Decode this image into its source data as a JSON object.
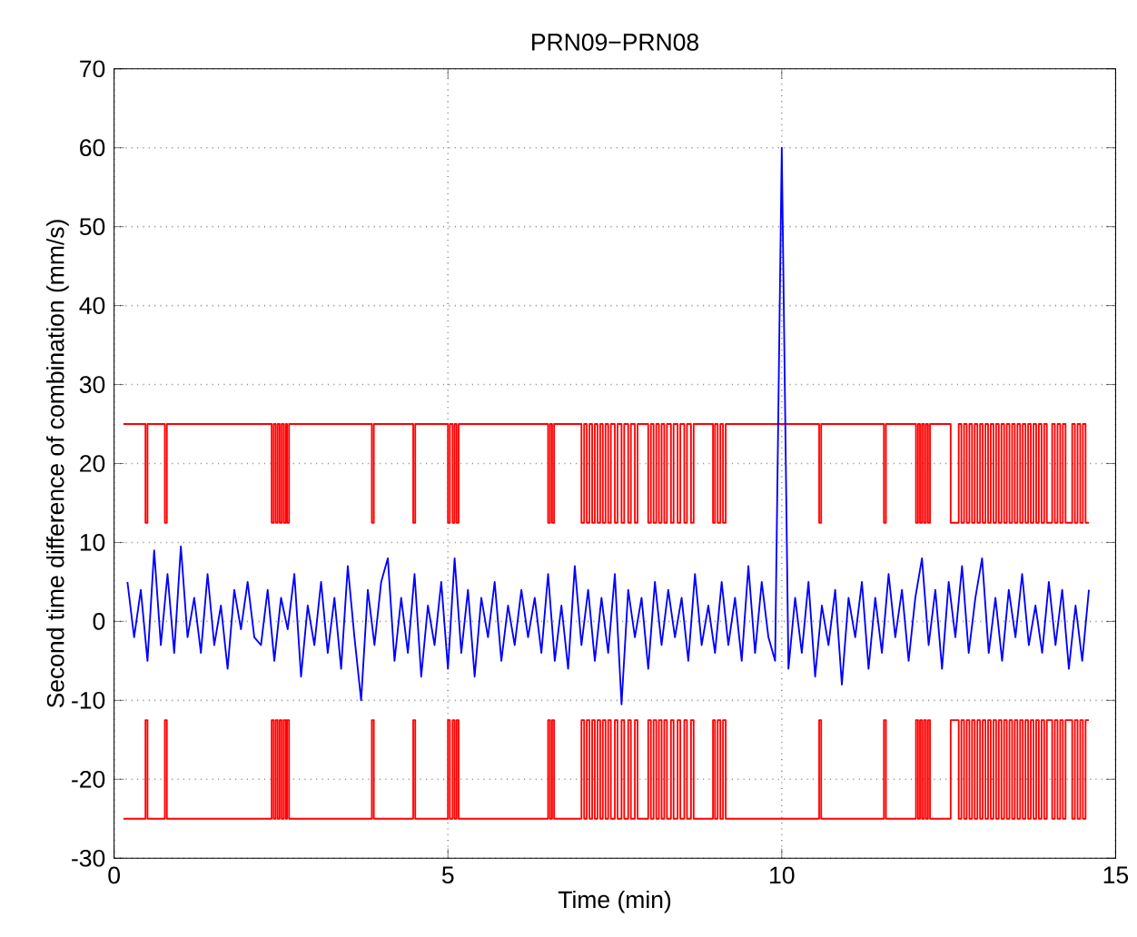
{
  "chart_data": {
    "type": "line",
    "title": "PRN09−PRN08",
    "xlabel": "Time (min)",
    "ylabel": "Second time difference of combination (mm/s)",
    "xlim": [
      0,
      15
    ],
    "ylim": [
      -30,
      70
    ],
    "xticks": [
      0,
      5,
      10,
      15
    ],
    "yticks": [
      -30,
      -20,
      -10,
      0,
      10,
      20,
      30,
      40,
      50,
      60,
      70
    ],
    "grid": true,
    "series": [
      {
        "type": "step",
        "color": "#ff0000",
        "x": [
          0.14,
          0.47,
          0.5,
          0.76,
          0.79,
          2.36,
          2.39,
          2.42,
          2.45,
          2.48,
          2.51,
          2.54,
          2.57,
          2.59,
          2.62,
          3.86,
          3.89,
          4.48,
          4.51,
          5.0,
          5.03,
          5.07,
          5.1,
          5.13,
          5.16,
          6.5,
          6.53,
          6.56,
          6.59,
          7.0,
          7.04,
          7.08,
          7.12,
          7.16,
          7.2,
          7.24,
          7.28,
          7.32,
          7.36,
          7.4,
          7.44,
          7.5,
          7.54,
          7.6,
          7.64,
          7.7,
          7.74,
          7.8,
          7.84,
          8.0,
          8.04,
          8.08,
          8.12,
          8.16,
          8.2,
          8.24,
          8.28,
          8.34,
          8.38,
          8.44,
          8.48,
          8.54,
          8.58,
          8.64,
          8.68,
          8.97,
          9.0,
          9.04,
          9.08,
          9.12,
          9.16,
          10.56,
          10.59,
          11.53,
          11.56,
          12.01,
          12.04,
          12.07,
          12.1,
          12.13,
          12.16,
          12.19,
          12.22,
          12.53,
          12.65,
          12.69,
          12.73,
          12.77,
          12.81,
          12.85,
          12.89,
          12.93,
          12.97,
          13.01,
          13.05,
          13.09,
          13.13,
          13.17,
          13.21,
          13.25,
          13.29,
          13.33,
          13.37,
          13.41,
          13.45,
          13.49,
          13.53,
          13.57,
          13.61,
          13.65,
          13.69,
          13.73,
          13.77,
          13.81,
          13.85,
          13.89,
          13.93,
          13.97,
          14.05,
          14.09,
          14.13,
          14.17,
          14.21,
          14.25,
          14.35,
          14.39,
          14.43,
          14.47,
          14.51,
          14.55,
          14.6
        ],
        "values": [
          25,
          12.5,
          25,
          12.5,
          25,
          12.5,
          25,
          12.5,
          25,
          12.5,
          25,
          12.5,
          25,
          12.5,
          25,
          12.5,
          25,
          12.5,
          25,
          12.5,
          25,
          12.5,
          25,
          12.5,
          25,
          12.5,
          25,
          12.5,
          25,
          12.5,
          25,
          12.5,
          25,
          12.5,
          25,
          12.5,
          25,
          12.5,
          25,
          12.5,
          25,
          12.5,
          25,
          12.5,
          25,
          12.5,
          25,
          12.5,
          25,
          12.5,
          25,
          12.5,
          25,
          12.5,
          25,
          12.5,
          25,
          12.5,
          25,
          12.5,
          25,
          12.5,
          25,
          12.5,
          25,
          12.5,
          25,
          12.5,
          25,
          12.5,
          25,
          12.5,
          25,
          12.5,
          25,
          12.5,
          25,
          12.5,
          25,
          12.5,
          25,
          12.5,
          25,
          12.5,
          25,
          12.5,
          25,
          12.5,
          25,
          12.5,
          25,
          12.5,
          25,
          12.5,
          25,
          12.5,
          25,
          12.5,
          25,
          12.5,
          25,
          12.5,
          25,
          12.5,
          25,
          12.5,
          25,
          12.5,
          25,
          12.5,
          25,
          12.5,
          25,
          12.5,
          25,
          12.5,
          25,
          12.5,
          25,
          12.5,
          25,
          12.5,
          25,
          12.5,
          25,
          12.5,
          25,
          12.5,
          25,
          12.5,
          12.5
        ]
      },
      {
        "type": "step",
        "color": "#ff0000",
        "x": [
          0.14,
          0.47,
          0.5,
          0.76,
          0.79,
          2.36,
          2.39,
          2.42,
          2.45,
          2.48,
          2.51,
          2.54,
          2.57,
          2.59,
          2.62,
          3.86,
          3.89,
          4.48,
          4.51,
          5.0,
          5.03,
          5.07,
          5.1,
          5.13,
          5.16,
          6.5,
          6.53,
          6.56,
          6.59,
          7.0,
          7.04,
          7.08,
          7.12,
          7.16,
          7.2,
          7.24,
          7.28,
          7.32,
          7.36,
          7.4,
          7.44,
          7.5,
          7.54,
          7.6,
          7.64,
          7.7,
          7.74,
          7.8,
          7.84,
          8.0,
          8.04,
          8.08,
          8.12,
          8.16,
          8.2,
          8.24,
          8.28,
          8.34,
          8.38,
          8.44,
          8.48,
          8.54,
          8.58,
          8.64,
          8.68,
          8.97,
          9.0,
          9.04,
          9.08,
          9.12,
          9.16,
          10.56,
          10.59,
          11.53,
          11.56,
          12.01,
          12.04,
          12.07,
          12.1,
          12.13,
          12.16,
          12.19,
          12.22,
          12.53,
          12.65,
          12.69,
          12.73,
          12.77,
          12.81,
          12.85,
          12.89,
          12.93,
          12.97,
          13.01,
          13.05,
          13.09,
          13.13,
          13.17,
          13.21,
          13.25,
          13.29,
          13.33,
          13.37,
          13.41,
          13.45,
          13.49,
          13.53,
          13.57,
          13.61,
          13.65,
          13.69,
          13.73,
          13.77,
          13.81,
          13.85,
          13.89,
          13.93,
          13.97,
          14.05,
          14.09,
          14.13,
          14.17,
          14.21,
          14.25,
          14.35,
          14.39,
          14.43,
          14.47,
          14.51,
          14.55,
          14.6
        ],
        "values": [
          -25,
          -12.5,
          -25,
          -12.5,
          -25,
          -12.5,
          -25,
          -12.5,
          -25,
          -12.5,
          -25,
          -12.5,
          -25,
          -12.5,
          -25,
          -12.5,
          -25,
          -12.5,
          -25,
          -12.5,
          -25,
          -12.5,
          -25,
          -12.5,
          -25,
          -12.5,
          -25,
          -12.5,
          -25,
          -12.5,
          -25,
          -12.5,
          -25,
          -12.5,
          -25,
          -12.5,
          -25,
          -12.5,
          -25,
          -12.5,
          -25,
          -12.5,
          -25,
          -12.5,
          -25,
          -12.5,
          -25,
          -12.5,
          -25,
          -12.5,
          -25,
          -12.5,
          -25,
          -12.5,
          -25,
          -12.5,
          -25,
          -12.5,
          -25,
          -12.5,
          -25,
          -12.5,
          -25,
          -12.5,
          -25,
          -12.5,
          -25,
          -12.5,
          -25,
          -12.5,
          -25,
          -12.5,
          -25,
          -12.5,
          -25,
          -12.5,
          -25,
          -12.5,
          -25,
          -12.5,
          -25,
          -12.5,
          -25,
          -12.5,
          -25,
          -12.5,
          -25,
          -12.5,
          -25,
          -12.5,
          -25,
          -12.5,
          -25,
          -12.5,
          -25,
          -12.5,
          -25,
          -12.5,
          -25,
          -12.5,
          -25,
          -12.5,
          -25,
          -12.5,
          -25,
          -12.5,
          -25,
          -12.5,
          -25,
          -12.5,
          -25,
          -12.5,
          -25,
          -12.5,
          -25,
          -12.5,
          -25,
          -12.5,
          -25,
          -12.5,
          -25,
          -12.5,
          -25,
          -12.5,
          -25,
          -12.5,
          -25,
          -12.5,
          -25,
          -12.5,
          -12.5
        ]
      },
      {
        "color": "#0000ff",
        "x": [
          0.2,
          0.3,
          0.4,
          0.5,
          0.6,
          0.7,
          0.8,
          0.9,
          1.0,
          1.1,
          1.2,
          1.3,
          1.4,
          1.5,
          1.6,
          1.7,
          1.8,
          1.9,
          2.0,
          2.1,
          2.2,
          2.3,
          2.4,
          2.5,
          2.6,
          2.7,
          2.8,
          2.9,
          3.0,
          3.1,
          3.2,
          3.3,
          3.4,
          3.5,
          3.6,
          3.7,
          3.8,
          3.9,
          4.0,
          4.1,
          4.2,
          4.3,
          4.4,
          4.5,
          4.6,
          4.7,
          4.8,
          4.9,
          5.0,
          5.1,
          5.2,
          5.3,
          5.4,
          5.5,
          5.6,
          5.7,
          5.8,
          5.9,
          6.0,
          6.1,
          6.2,
          6.3,
          6.4,
          6.5,
          6.6,
          6.7,
          6.8,
          6.9,
          7.0,
          7.1,
          7.2,
          7.3,
          7.4,
          7.5,
          7.6,
          7.7,
          7.8,
          7.9,
          8.0,
          8.1,
          8.2,
          8.3,
          8.4,
          8.5,
          8.6,
          8.7,
          8.8,
          8.9,
          9.0,
          9.1,
          9.2,
          9.3,
          9.4,
          9.5,
          9.6,
          9.7,
          9.8,
          9.9,
          10.0,
          10.1,
          10.2,
          10.3,
          10.4,
          10.5,
          10.6,
          10.7,
          10.8,
          10.9,
          11.0,
          11.1,
          11.2,
          11.3,
          11.4,
          11.5,
          11.6,
          11.7,
          11.8,
          11.9,
          12.0,
          12.1,
          12.2,
          12.3,
          12.4,
          12.5,
          12.6,
          12.7,
          12.8,
          12.9,
          13.0,
          13.1,
          13.2,
          13.3,
          13.4,
          13.5,
          13.6,
          13.7,
          13.8,
          13.9,
          14.0,
          14.1,
          14.2,
          14.3,
          14.4,
          14.5,
          14.6
        ],
        "values": [
          5,
          -2,
          4,
          -5,
          9,
          -3,
          6,
          -4,
          9.5,
          -2,
          3,
          -4,
          6,
          -3,
          2,
          -6,
          4,
          -1,
          5,
          -2,
          -3,
          4,
          -5,
          3,
          -1,
          6,
          -7,
          2,
          -3,
          5,
          -4,
          3,
          -6,
          7,
          -2,
          -10,
          4,
          -3,
          5,
          8,
          -5,
          3,
          -4,
          6,
          -7,
          2,
          -3,
          5,
          -6,
          8,
          -4,
          4,
          -7,
          3,
          -2,
          5,
          -5,
          2,
          -3,
          4,
          -2,
          3,
          -4,
          6,
          -5,
          2,
          -6,
          7,
          -3,
          4,
          -5,
          3,
          -4,
          6,
          -10.5,
          4,
          -2,
          3,
          -6,
          5,
          -3,
          4,
          -2,
          3,
          -5,
          6,
          -3,
          2,
          -4,
          5,
          -3,
          3,
          -5,
          7,
          -4,
          5,
          -2,
          -5,
          60,
          -6,
          3,
          -4,
          5,
          -7,
          2,
          -3,
          4,
          -8,
          3,
          -2,
          5,
          -6,
          3,
          -4,
          6,
          -2,
          4,
          -5,
          3,
          8,
          -3,
          4,
          -6,
          5,
          -2,
          7,
          -4,
          3,
          8,
          -4,
          3,
          -5,
          4,
          -2,
          6,
          -3,
          2,
          -4,
          5,
          -3,
          4,
          -6,
          2,
          -5,
          4
        ]
      }
    ]
  }
}
